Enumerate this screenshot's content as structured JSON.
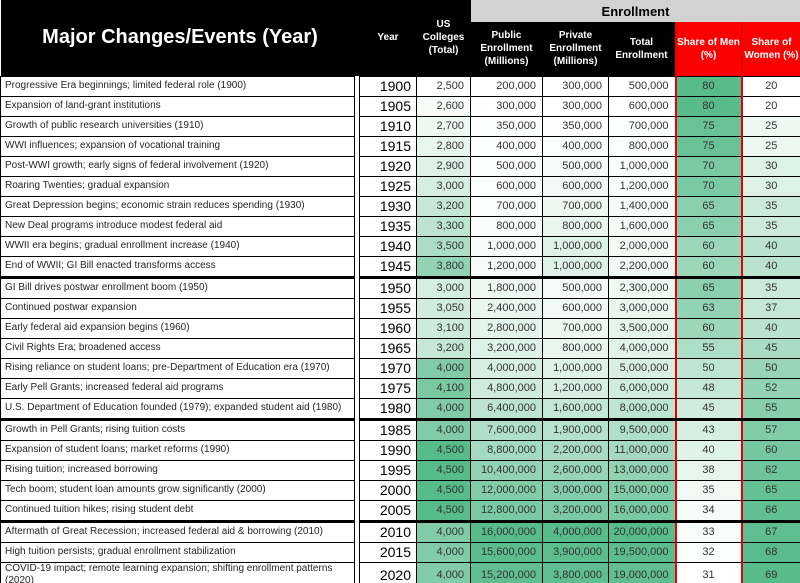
{
  "colors": {
    "header_bg": "#000000",
    "header_text": "#FFFFFF",
    "enrollment_band_bg": "#D2D2D2",
    "share_header_bg": "#FA0000",
    "red_outline": "#E70000",
    "grid": "#000000"
  },
  "chart_data": {
    "type": "table",
    "enrollment_group_label": "Enrollment",
    "enrollment_group_spans": [
      "public",
      "private",
      "total",
      "men",
      "women"
    ],
    "columns": {
      "event": "Major Changes/Events (Year)",
      "year": "Year",
      "colleges": "US Colleges (Total)",
      "public": "Public Enrollment (Millions)",
      "private": "Private Enrollment (Millions)",
      "total": "Total Enrollment",
      "men": "Share of Men (%)",
      "women": "Share of Women (%)"
    },
    "color_scale": {
      "applies_to": [
        "colleges",
        "public",
        "private",
        "total",
        "men",
        "women"
      ],
      "min_color": "#FFFFFF",
      "max_color": "#57BB8A"
    },
    "group_breaks_before_years": [
      "1950",
      "1985",
      "2010"
    ],
    "rows": [
      {
        "event": "Progressive Era beginnings; limited federal role (1900)",
        "year": "1900",
        "colleges": "2,500",
        "public": "200,000",
        "private": "300,000",
        "total": "500,000",
        "men": "80",
        "women": "20"
      },
      {
        "event": "Expansion of land-grant institutions",
        "year": "1905",
        "colleges": "2,600",
        "public": "300,000",
        "private": "300,000",
        "total": "600,000",
        "men": "80",
        "women": "20"
      },
      {
        "event": "Growth of public research universities (1910)",
        "year": "1910",
        "colleges": "2,700",
        "public": "350,000",
        "private": "350,000",
        "total": "700,000",
        "men": "75",
        "women": "25"
      },
      {
        "event": "WWI influences; expansion of vocational training",
        "year": "1915",
        "colleges": "2,800",
        "public": "400,000",
        "private": "400,000",
        "total": "800,000",
        "men": "75",
        "women": "25"
      },
      {
        "event": "Post-WWI growth; early signs of federal involvement (1920)",
        "year": "1920",
        "colleges": "2,900",
        "public": "500,000",
        "private": "500,000",
        "total": "1,000,000",
        "men": "70",
        "women": "30"
      },
      {
        "event": "Roaring Twenties; gradual expansion",
        "year": "1925",
        "colleges": "3,000",
        "public": "600,000",
        "private": "600,000",
        "total": "1,200,000",
        "men": "70",
        "women": "30"
      },
      {
        "event": "Great Depression begins; economic strain reduces spending (1930)",
        "year": "1930",
        "colleges": "3,200",
        "public": "700,000",
        "private": "700,000",
        "total": "1,400,000",
        "men": "65",
        "women": "35"
      },
      {
        "event": "New Deal programs introduce modest federal aid",
        "year": "1935",
        "colleges": "3,300",
        "public": "800,000",
        "private": "800,000",
        "total": "1,600,000",
        "men": "65",
        "women": "35"
      },
      {
        "event": "WWII era begins; gradual enrollment increase (1940)",
        "year": "1940",
        "colleges": "3,500",
        "public": "1,000,000",
        "private": "1,000,000",
        "total": "2,000,000",
        "men": "60",
        "women": "40"
      },
      {
        "event": "End of WWII; GI Bill enacted transforms access",
        "year": "1945",
        "colleges": "3,800",
        "public": "1,200,000",
        "private": "1,000,000",
        "total": "2,200,000",
        "men": "60",
        "women": "40"
      },
      {
        "event": "GI Bill drives postwar enrollment boom (1950)",
        "year": "1950",
        "colleges": "3,000",
        "public": "1,800,000",
        "private": "500,000",
        "total": "2,300,000",
        "men": "65",
        "women": "35"
      },
      {
        "event": "Continued postwar expansion",
        "year": "1955",
        "colleges": "3,050",
        "public": "2,400,000",
        "private": "600,000",
        "total": "3,000,000",
        "men": "63",
        "women": "37"
      },
      {
        "event": "Early federal aid expansion begins (1960)",
        "year": "1960",
        "colleges": "3,100",
        "public": "2,800,000",
        "private": "700,000",
        "total": "3,500,000",
        "men": "60",
        "women": "40"
      },
      {
        "event": "Civil Rights Era; broadened access",
        "year": "1965",
        "colleges": "3,200",
        "public": "3,200,000",
        "private": "800,000",
        "total": "4,000,000",
        "men": "55",
        "women": "45"
      },
      {
        "event": "Rising reliance on student loans; pre-Department of Education era (1970)",
        "year": "1970",
        "colleges": "4,000",
        "public": "4,000,000",
        "private": "1,000,000",
        "total": "5,000,000",
        "men": "50",
        "women": "50"
      },
      {
        "event": "Early Pell Grants; increased federal aid programs",
        "year": "1975",
        "colleges": "4,100",
        "public": "4,800,000",
        "private": "1,200,000",
        "total": "6,000,000",
        "men": "48",
        "women": "52"
      },
      {
        "event": "U.S. Department of Education founded (1979); expanded student aid (1980)",
        "year": "1980",
        "colleges": "4,000",
        "public": "6,400,000",
        "private": "1,600,000",
        "total": "8,000,000",
        "men": "45",
        "women": "55"
      },
      {
        "event": "Growth in Pell Grants; rising tuition costs",
        "year": "1985",
        "colleges": "4,000",
        "public": "7,600,000",
        "private": "1,900,000",
        "total": "9,500,000",
        "men": "43",
        "women": "57"
      },
      {
        "event": "Expansion of student loans; market reforms (1990)",
        "year": "1990",
        "colleges": "4,500",
        "public": "8,800,000",
        "private": "2,200,000",
        "total": "11,000,000",
        "men": "40",
        "women": "60"
      },
      {
        "event": "Rising tuition; increased borrowing",
        "year": "1995",
        "colleges": "4,500",
        "public": "10,400,000",
        "private": "2,600,000",
        "total": "13,000,000",
        "men": "38",
        "women": "62"
      },
      {
        "event": "Tech boom; student loan amounts grow significantly (2000)",
        "year": "2000",
        "colleges": "4,500",
        "public": "12,000,000",
        "private": "3,000,000",
        "total": "15,000,000",
        "men": "35",
        "women": "65"
      },
      {
        "event": "Continued tuition hikes; rising student debt",
        "year": "2005",
        "colleges": "4,500",
        "public": "12,800,000",
        "private": "3,200,000",
        "total": "16,000,000",
        "men": "34",
        "women": "66"
      },
      {
        "event": "Aftermath of Great Recession; increased federal aid & borrowing (2010)",
        "year": "2010",
        "colleges": "4,000",
        "public": "16,000,000",
        "private": "4,000,000",
        "total": "20,000,000",
        "men": "33",
        "women": "67"
      },
      {
        "event": "High tuition persists; gradual enrollment stabilization",
        "year": "2015",
        "colleges": "4,000",
        "public": "15,600,000",
        "private": "3,900,000",
        "total": "19,500,000",
        "men": "32",
        "women": "68"
      },
      {
        "event": "COVID-19 impact; remote learning expansion; shifting enrollment patterns (2020)",
        "year": "2020",
        "colleges": "4,000",
        "public": "15,200,000",
        "private": "3,800,000",
        "total": "19,000,000",
        "men": "31",
        "women": "69"
      }
    ]
  }
}
